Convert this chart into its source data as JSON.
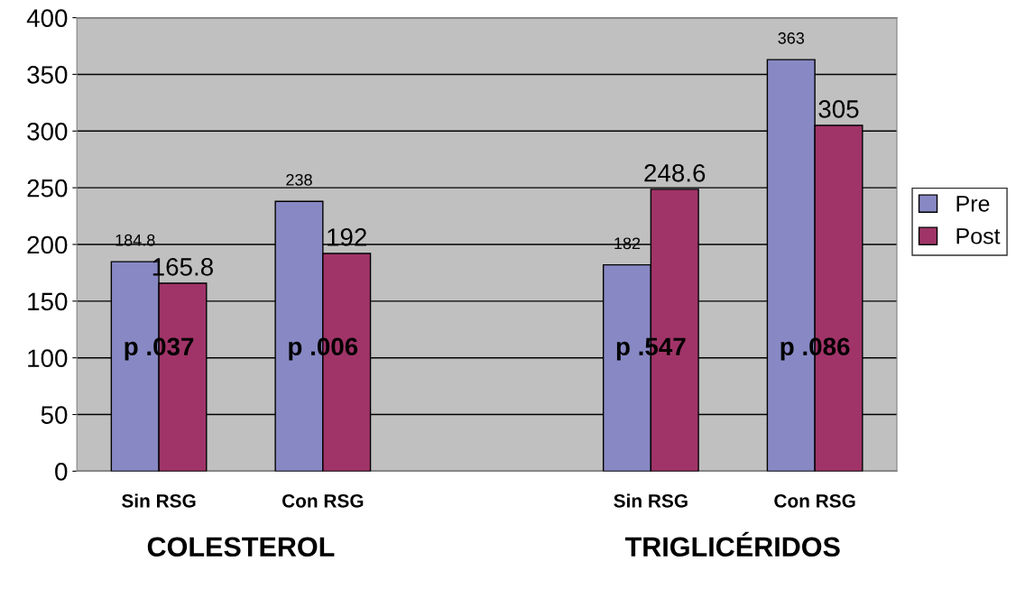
{
  "chart_data": {
    "type": "bar",
    "categories": [
      "Sin RSG",
      "Con RSG",
      null,
      "Sin RSG",
      "Con RSG"
    ],
    "series": [
      {
        "name": "Pre",
        "color": "#8888c4",
        "values": [
          184.8,
          238,
          null,
          182,
          363
        ]
      },
      {
        "name": "Post",
        "color": "#a03468",
        "values": [
          165.8,
          192,
          null,
          248.6,
          305
        ]
      }
    ],
    "ylim": [
      0,
      400
    ],
    "yticks": [
      0,
      50,
      100,
      150,
      200,
      250,
      300,
      350,
      400
    ],
    "grid": "y",
    "legend": "right",
    "data_labels": true,
    "annotations": [
      "p .037",
      "p .006",
      "p .547",
      "p .086",
      "COLESTEROL",
      "TRIGLICÉRIDOS"
    ]
  }
}
